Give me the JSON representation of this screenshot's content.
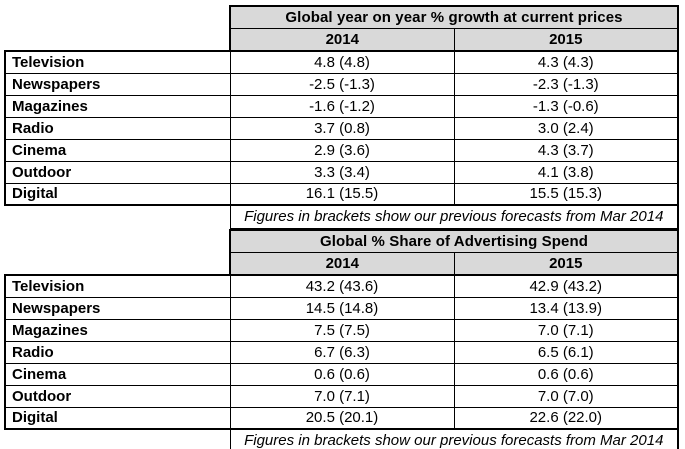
{
  "colors": {
    "header_bg": "#d9d9d9",
    "border": "#000000",
    "text": "#000000",
    "background": "#ffffff"
  },
  "tables": [
    {
      "title": "Global year on year % growth at current prices",
      "col_headers": [
        "2014",
        "2015"
      ],
      "rows": [
        {
          "label": "Television",
          "v2014": "4.8 (4.8)",
          "v2015": "4.3 (4.3)"
        },
        {
          "label": "Newspapers",
          "v2014": "-2.5 (-1.3)",
          "v2015": "-2.3 (-1.3)"
        },
        {
          "label": "Magazines",
          "v2014": "-1.6 (-1.2)",
          "v2015": "-1.3 (-0.6)"
        },
        {
          "label": "Radio",
          "v2014": "3.7 (0.8)",
          "v2015": "3.0 (2.4)"
        },
        {
          "label": "Cinema",
          "v2014": "2.9 (3.6)",
          "v2015": "4.3 (3.7)"
        },
        {
          "label": "Outdoor",
          "v2014": "3.3 (3.4)",
          "v2015": "4.1 (3.8)"
        },
        {
          "label": "Digital",
          "v2014": "16.1 (15.5)",
          "v2015": "15.5 (15.3)"
        }
      ],
      "note": "Figures in brackets show our previous forecasts from Mar 2014"
    },
    {
      "title": "Global % Share of Advertising Spend",
      "col_headers": [
        "2014",
        "2015"
      ],
      "rows": [
        {
          "label": "Television",
          "v2014": "43.2 (43.6)",
          "v2015": "42.9 (43.2)"
        },
        {
          "label": "Newspapers",
          "v2014": "14.5 (14.8)",
          "v2015": "13.4 (13.9)"
        },
        {
          "label": "Magazines",
          "v2014": "7.5 (7.5)",
          "v2015": "7.0 (7.1)"
        },
        {
          "label": "Radio",
          "v2014": "6.7 (6.3)",
          "v2015": "6.5 (6.1)"
        },
        {
          "label": "Cinema",
          "v2014": "0.6 (0.6)",
          "v2015": "0.6 (0.6)"
        },
        {
          "label": "Outdoor",
          "v2014": "7.0 (7.1)",
          "v2015": "7.0 (7.0)"
        },
        {
          "label": "Digital",
          "v2014": "20.5 (20.1)",
          "v2015": "22.6 (22.0)"
        }
      ],
      "note": "Figures in brackets show our previous forecasts from Mar 2014"
    }
  ]
}
